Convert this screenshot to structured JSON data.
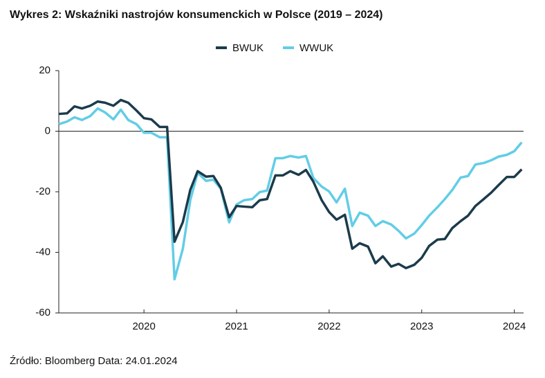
{
  "chart_data": {
    "type": "line",
    "title": "Wykres 2: Wskaźniki nastrojów konsumenckich w Polsce (2019 – 2024)",
    "source": "Źródło: Bloomberg Data: 24.01.2024",
    "x": [
      2019.08,
      2019.17,
      2019.25,
      2019.33,
      2019.42,
      2019.5,
      2019.58,
      2019.67,
      2019.75,
      2019.83,
      2019.92,
      2020,
      2020.08,
      2020.17,
      2020.25,
      2020.33,
      2020.42,
      2020.5,
      2020.58,
      2020.67,
      2020.75,
      2020.83,
      2020.92,
      2021,
      2021.08,
      2021.17,
      2021.25,
      2021.33,
      2021.42,
      2021.5,
      2021.58,
      2021.67,
      2021.75,
      2021.83,
      2021.92,
      2022,
      2022.08,
      2022.17,
      2022.25,
      2022.33,
      2022.42,
      2022.5,
      2022.58,
      2022.67,
      2022.75,
      2022.83,
      2022.92,
      2023,
      2023.08,
      2023.17,
      2023.25,
      2023.33,
      2023.42,
      2023.5,
      2023.58,
      2023.67,
      2023.75,
      2023.83,
      2023.92,
      2024,
      2024.08
    ],
    "series": [
      {
        "name": "BWUK",
        "color": "#1b3b4b",
        "values": [
          5.7,
          5.9,
          8.2,
          7.5,
          8.4,
          9.8,
          9.4,
          8.4,
          10.3,
          9.4,
          6.8,
          4.3,
          3.9,
          1.4,
          1.4,
          -36.5,
          -30,
          -19.4,
          -13.2,
          -15,
          -14.8,
          -18.7,
          -28.4,
          -24.7,
          -24.9,
          -25.1,
          -22.8,
          -22.4,
          -14.6,
          -14.6,
          -13.2,
          -14.4,
          -12.8,
          -16.7,
          -22.8,
          -26.7,
          -29.2,
          -27.6,
          -38.8,
          -37,
          -38.1,
          -43.6,
          -41.3,
          -44.7,
          -43.8,
          -45.2,
          -44.1,
          -41.8,
          -37.9,
          -35.8,
          -35.6,
          -32,
          -29.7,
          -27.9,
          -24.7,
          -22.4,
          -20.3,
          -17.8,
          -15.1,
          -15.1,
          -12.6
        ]
      },
      {
        "name": "WWUK",
        "color": "#62cde6",
        "values": [
          2.3,
          3.2,
          4.6,
          3.7,
          5,
          7.5,
          6.2,
          3.9,
          7.1,
          3.7,
          2.3,
          -0.5,
          -0.5,
          -2,
          -2,
          -48.9,
          -38.8,
          -22.8,
          -13.7,
          -16.4,
          -16,
          -19,
          -30.1,
          -24.2,
          -22.8,
          -22.4,
          -20.1,
          -19.6,
          -8.9,
          -8.9,
          -8.2,
          -8.7,
          -8.2,
          -15.5,
          -18.3,
          -19.9,
          -23.5,
          -19,
          -31.3,
          -26.9,
          -27.9,
          -31.3,
          -29.7,
          -30.8,
          -32.9,
          -35.4,
          -33.8,
          -31,
          -27.9,
          -25.1,
          -22.4,
          -19.4,
          -15.3,
          -14.8,
          -11,
          -10.5,
          -9.6,
          -8.4,
          -7.8,
          -6.6,
          -3.7
        ]
      }
    ],
    "xlim": [
      2019.08,
      2024.1
    ],
    "xticks": [
      2020,
      2021,
      2022,
      2023,
      2024
    ],
    "ylim": [
      -60,
      20
    ],
    "yticks": [
      -60,
      -40,
      -20,
      0,
      20
    ],
    "legend": "top"
  }
}
